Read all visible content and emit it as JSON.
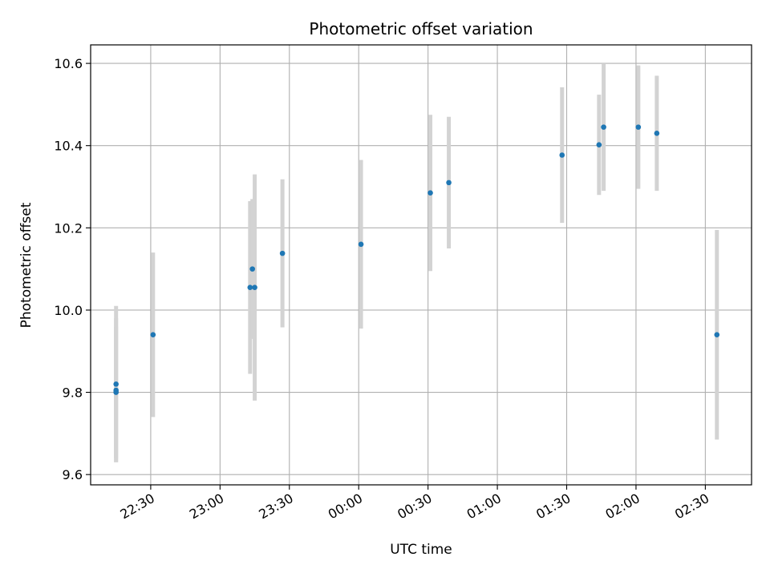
{
  "chart_data": {
    "type": "scatter",
    "title": "Photometric offset variation",
    "xlabel": "UTC time",
    "ylabel": "Photometric offset",
    "x_ticks": [
      "22:30",
      "23:00",
      "23:30",
      "00:00",
      "00:30",
      "01:00",
      "01:30",
      "02:00",
      "02:30"
    ],
    "y_ticks": [
      "9.6",
      "9.8",
      "10.0",
      "10.2",
      "10.4",
      "10.6"
    ],
    "ylim": [
      9.575,
      10.645
    ],
    "xlim": [
      "22:04",
      "02:50"
    ],
    "grid": true,
    "colors": {
      "points": "#1f77b4",
      "errorbars": "#d3d3d3",
      "grid": "#b0b0b0"
    },
    "series": [
      {
        "points": [
          {
            "x": "22:15",
            "y": 9.8,
            "err": 0.16
          },
          {
            "x": "22:15",
            "y": 9.805,
            "err": 0.175
          },
          {
            "x": "22:15",
            "y": 9.82,
            "err": 0.19
          },
          {
            "x": "22:31",
            "y": 9.94,
            "err": 0.2
          },
          {
            "x": "23:13",
            "y": 10.055,
            "err": 0.21
          },
          {
            "x": "23:14",
            "y": 10.1,
            "err": 0.17
          },
          {
            "x": "23:15",
            "y": 10.055,
            "err": 0.275
          },
          {
            "x": "23:27",
            "y": 10.138,
            "err": 0.18
          },
          {
            "x": "00:01",
            "y": 10.16,
            "err": 0.205
          },
          {
            "x": "00:31",
            "y": 10.285,
            "err": 0.19
          },
          {
            "x": "00:39",
            "y": 10.31,
            "err": 0.16
          },
          {
            "x": "01:28",
            "y": 10.377,
            "err": 0.165
          },
          {
            "x": "01:44",
            "y": 10.402,
            "err": 0.122
          },
          {
            "x": "01:46",
            "y": 10.445,
            "err": 0.155
          },
          {
            "x": "02:01",
            "y": 10.445,
            "err": 0.15
          },
          {
            "x": "02:09",
            "y": 10.43,
            "err": 0.14
          },
          {
            "x": "02:35",
            "y": 9.94,
            "err": 0.255
          }
        ]
      }
    ]
  }
}
